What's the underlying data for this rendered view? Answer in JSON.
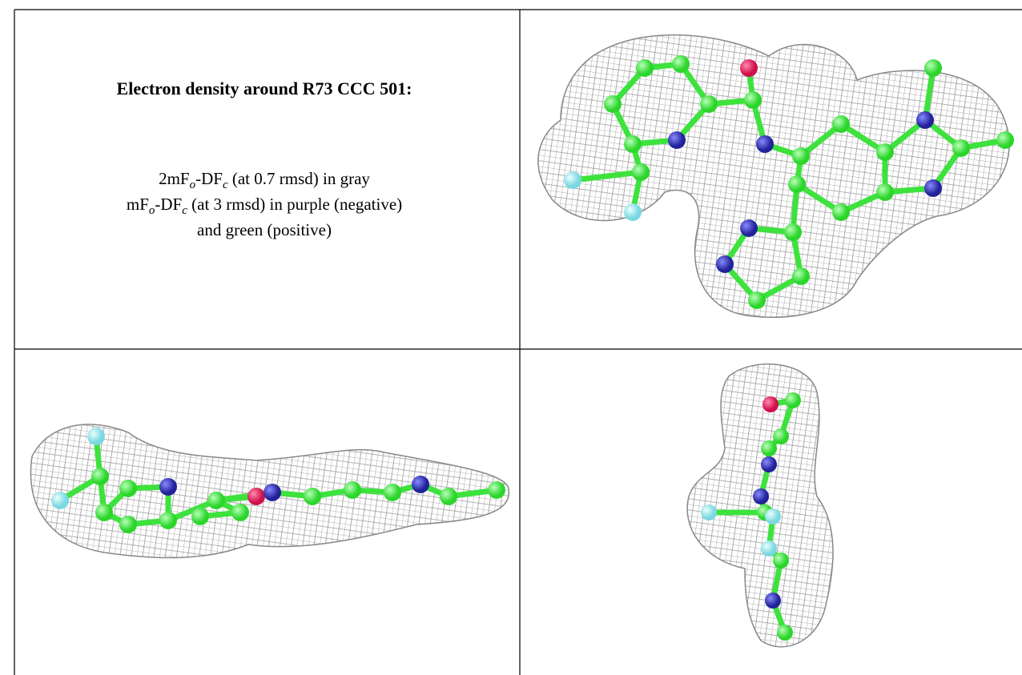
{
  "caption": {
    "title": "Electron density around R73 CCC 501:",
    "lines": [
      [
        "2mF",
        "o",
        "-DF",
        "c",
        " (at 0.7 rmsd) in gray"
      ],
      [
        "mF",
        "o",
        "-DF",
        "c",
        " (at 3 rmsd) in purple (negative)"
      ],
      [
        "and green (positive)"
      ]
    ]
  }
}
